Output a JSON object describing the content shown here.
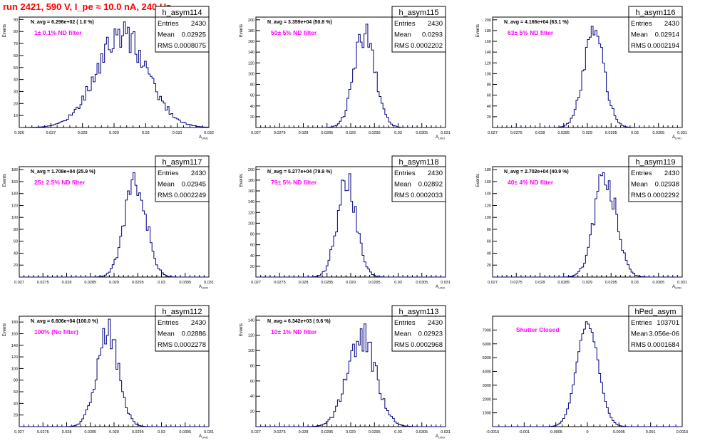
{
  "header": {
    "run_title": "run 2421,   590 V, I_pe ≈ 10.0 nA, 240 Hz"
  },
  "colors": {
    "histogram": "#000080",
    "annotation": "#ff00ff",
    "run_title": "#ff0000"
  },
  "stats_labels": {
    "entries": "Entries",
    "mean": "Mean",
    "rms": "RMS"
  },
  "chart_data": [
    {
      "type": "bar",
      "name": "h_asym114",
      "navg": "N_avg = 6.296e+02 ( 1.0 %)",
      "filter": "1± 0.1% ND filter",
      "entries": "2430",
      "mean": "0.02925",
      "rms": "0.0008075",
      "ylabel": "Events",
      "xlabel": "A",
      "xlim": [
        0.026,
        0.032
      ],
      "ylim": [
        0,
        92
      ],
      "xticks": [
        "0.026",
        "0.027",
        "0.028",
        "0.029",
        "0.03",
        "0.031",
        "0.032"
      ],
      "yticks": [
        "10",
        "20",
        "30",
        "40",
        "50",
        "60",
        "70",
        "80",
        "90"
      ],
      "peak": 88
    },
    {
      "type": "bar",
      "name": "h_asym115",
      "navg": "N_avg = 3.359e+04 (50.8 %)",
      "filter": "50± 5% ND filter",
      "entries": "2430",
      "mean": "0.0293",
      "rms": "0.0002202",
      "ylabel": "Events",
      "xlabel": "A",
      "xlim": [
        0.027,
        0.031
      ],
      "ylim": [
        0,
        205
      ],
      "xticks": [
        "0.027",
        "0.0275",
        "0.028",
        "0.0285",
        "0.029",
        "0.0295",
        "0.03",
        "0.0305",
        "0.031"
      ],
      "yticks": [
        "20",
        "40",
        "60",
        "80",
        "100",
        "120",
        "140",
        "160",
        "180",
        "200"
      ],
      "peak": 192
    },
    {
      "type": "bar",
      "name": "h_asym116",
      "navg": "N_avg = 4.166e+04 (63.1 %)",
      "filter": "63± 5% ND filter",
      "entries": "2430",
      "mean": "0.02914",
      "rms": "0.0002194",
      "ylabel": "Events",
      "xlabel": "A",
      "xlim": [
        0.027,
        0.031
      ],
      "ylim": [
        0,
        205
      ],
      "xticks": [
        "0.027",
        "0.0275",
        "0.028",
        "0.0285",
        "0.029",
        "0.0295",
        "0.03",
        "0.0305",
        "0.031"
      ],
      "yticks": [
        "20",
        "40",
        "60",
        "80",
        "100",
        "120",
        "140",
        "160",
        "180",
        "200"
      ],
      "peak": 188
    },
    {
      "type": "bar",
      "name": "h_asym117",
      "navg": "N_avg = 1.708e+04 (25.9 %)",
      "filter": "25± 2.5% ND filter",
      "entries": "2430",
      "mean": "0.02945",
      "rms": "0.0002249",
      "ylabel": "Events",
      "xlabel": "A",
      "xlim": [
        0.027,
        0.031
      ],
      "ylim": [
        0,
        185
      ],
      "xticks": [
        "0.027",
        "0.0275",
        "0.028",
        "0.0285",
        "0.029",
        "0.0295",
        "0.03",
        "0.0305",
        "0.031"
      ],
      "yticks": [
        "20",
        "40",
        "60",
        "80",
        "100",
        "120",
        "140",
        "160",
        "180"
      ],
      "peak": 175
    },
    {
      "type": "bar",
      "name": "h_asym118",
      "navg": "N_avg = 5.277e+04 (79.9 %)",
      "filter": "79± 5% ND filter",
      "entries": "2430",
      "mean": "0.02892",
      "rms": "0.0002033",
      "ylabel": "Events",
      "xlabel": "A",
      "xlim": [
        0.027,
        0.031
      ],
      "ylim": [
        0,
        205
      ],
      "xticks": [
        "0.027",
        "0.0275",
        "0.028",
        "0.0285",
        "0.029",
        "0.0295",
        "0.03",
        "0.0305",
        "0.031"
      ],
      "yticks": [
        "20",
        "40",
        "60",
        "80",
        "100",
        "120",
        "140",
        "160",
        "180",
        "200"
      ],
      "peak": 192
    },
    {
      "type": "bar",
      "name": "h_asym119",
      "navg": "N_avg = 2.702e+04 (40.9 %)",
      "filter": "40± 4% ND filter",
      "entries": "2430",
      "mean": "0.02938",
      "rms": "0.0002292",
      "ylabel": "Events",
      "xlabel": "A",
      "xlim": [
        0.027,
        0.031
      ],
      "ylim": [
        0,
        185
      ],
      "xticks": [
        "0.027",
        "0.0275",
        "0.028",
        "0.0285",
        "0.029",
        "0.0295",
        "0.03",
        "0.0305",
        "0.031"
      ],
      "yticks": [
        "20",
        "40",
        "60",
        "80",
        "100",
        "120",
        "140",
        "160",
        "180"
      ],
      "peak": 175
    },
    {
      "type": "bar",
      "name": "h_asym112",
      "navg": "N_avg = 6.606e+04 (100.0 %)",
      "filter": "100% (No filter)",
      "entries": "2430",
      "mean": "0.02886",
      "rms": "0.0002278",
      "ylabel": "Events",
      "xlabel": "A",
      "xlim": [
        0.027,
        0.031
      ],
      "ylim": [
        0,
        190
      ],
      "xticks": [
        "0.027",
        "0.0275",
        "0.028",
        "0.0285",
        "0.029",
        "0.0295",
        "0.03",
        "0.0305",
        "0.031"
      ],
      "yticks": [
        "20",
        "40",
        "60",
        "80",
        "100",
        "120",
        "140",
        "160",
        "180"
      ],
      "peak": 185
    },
    {
      "type": "bar",
      "name": "h_asym113",
      "navg": "N_avg = 6.342e+03 ( 9.6 %)",
      "filter": "10± 1% ND filter",
      "entries": "2430",
      "mean": "0.02923",
      "rms": "0.0002968",
      "ylabel": "Events",
      "xlabel": "A",
      "xlim": [
        0.027,
        0.031
      ],
      "ylim": [
        0,
        145
      ],
      "xticks": [
        "0.027",
        "0.0275",
        "0.028",
        "0.0285",
        "0.029",
        "0.0295",
        "0.03",
        "0.0305",
        "0.031"
      ],
      "yticks": [
        "20",
        "40",
        "60",
        "80",
        "100",
        "120",
        "140"
      ],
      "peak": 135
    },
    {
      "type": "bar",
      "name": "hPed_asym",
      "navg": "",
      "filter": "Shutter Closed",
      "entries": "103701",
      "mean": "3.056e-06",
      "rms": "0.0001684",
      "ylabel": "",
      "xlabel": "",
      "xlim": [
        -0.0015,
        0.0015
      ],
      "ylim": [
        0,
        8000
      ],
      "xticks": [
        "-0.0015",
        "-0.001",
        "-0.0005",
        "0",
        "0.0005",
        "0.001",
        "0.0015"
      ],
      "yticks": [
        "1000",
        "2000",
        "3000",
        "4000",
        "5000",
        "6000",
        "7000"
      ],
      "peak": 7600
    }
  ]
}
